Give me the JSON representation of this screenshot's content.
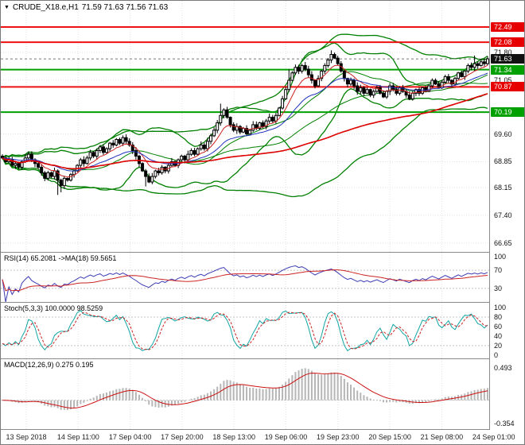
{
  "header": {
    "icon": "▼",
    "symbol_period": "CRUDE_X18.e,H1",
    "ohlc": "71.59 71.63 71.56 71.63"
  },
  "colors": {
    "background": "#ffffff",
    "grid": "#e2e2e2",
    "candle": "#000000",
    "bull_fill": "#ffffff",
    "bear_fill": "#000000",
    "bollinger": "#008000",
    "ma_fast": "#cc2222",
    "ma_slow": "#2233bb",
    "ma_long_red": "#dd0000",
    "level_red": "#ee1111",
    "level_green": "#00a000",
    "badge_red": "#e60000",
    "badge_green": "#00a000",
    "badge_black": "#111111",
    "rsi_line": "#3c3cb4",
    "rsi_ma": "#cc2222",
    "stoch_main": "#12a5a5",
    "stoch_signal": "#cc2222",
    "macd_hist": "#b6b6b6",
    "macd_signal": "#cc1111",
    "current_line": "#777777"
  },
  "chart_data": {
    "type": "candlestick",
    "symbol": "CRUDE_X18.e",
    "timeframe": "H1",
    "title": "CRUDE_X18.e,H1 71.59 71.63 71.56 71.63",
    "x_labels": [
      "13 Sep 2018",
      "14 Sep 11:00",
      "17 Sep 04:00",
      "17 Sep 20:00",
      "18 Sep 13:00",
      "19 Sep 06:00",
      "19 Sep 23:00",
      "20 Sep 15:00",
      "21 Sep 08:00",
      "24 Sep 01:00"
    ],
    "price_panel": {
      "ylim": [
        66.41,
        73.2
      ],
      "yticks": [
        71.8,
        71.05,
        69.6,
        68.85,
        68.15,
        67.4,
        66.65
      ],
      "levels": [
        {
          "price": 72.49,
          "color": "red"
        },
        {
          "price": 72.08,
          "color": "red"
        },
        {
          "price": 71.34,
          "color": "green"
        },
        {
          "price": 70.87,
          "color": "red"
        },
        {
          "price": 70.19,
          "color": "green"
        }
      ],
      "current_price": 71.63,
      "closes": [
        68.95,
        68.85,
        68.9,
        68.75,
        68.8,
        68.7,
        68.85,
        68.95,
        69.05,
        68.9,
        68.8,
        68.7,
        68.55,
        68.4,
        68.55,
        68.45,
        68.6,
        68.35,
        68.2,
        68.4,
        68.35,
        68.5,
        68.6,
        68.75,
        68.9,
        68.8,
        68.95,
        69.1,
        69.0,
        69.15,
        69.25,
        69.1,
        69.2,
        69.35,
        69.3,
        69.45,
        69.35,
        69.5,
        69.4,
        69.3,
        69.15,
        69.0,
        68.8,
        68.6,
        68.45,
        68.3,
        68.45,
        68.6,
        68.55,
        68.7,
        68.6,
        68.75,
        68.85,
        68.75,
        68.9,
        69.0,
        68.9,
        69.05,
        69.15,
        69.05,
        69.2,
        69.3,
        69.2,
        69.4,
        69.55,
        69.7,
        69.9,
        70.1,
        70.25,
        70.05,
        69.85,
        69.7,
        69.8,
        69.65,
        69.75,
        69.6,
        69.7,
        69.85,
        69.75,
        69.9,
        69.8,
        69.95,
        70.05,
        69.95,
        70.1,
        70.3,
        70.55,
        70.8,
        71.05,
        71.25,
        71.4,
        71.3,
        71.45,
        71.35,
        71.2,
        71.05,
        70.9,
        71.1,
        71.3,
        71.45,
        71.6,
        71.75,
        71.65,
        71.5,
        71.3,
        71.1,
        70.95,
        71.05,
        70.9,
        70.75,
        70.85,
        70.7,
        70.8,
        70.65,
        70.75,
        70.85,
        70.7,
        70.6,
        70.75,
        70.9,
        70.8,
        70.7,
        70.85,
        70.75,
        70.65,
        70.55,
        70.7,
        70.8,
        70.7,
        70.85,
        70.75,
        70.9,
        71.05,
        70.95,
        70.85,
        71.0,
        71.15,
        71.05,
        70.95,
        71.1,
        71.25,
        71.15,
        71.3,
        71.45,
        71.4,
        71.5,
        71.45,
        71.55,
        71.5,
        71.63
      ],
      "wick_spikes": [
        {
          "i": 17,
          "low": 67.95
        },
        {
          "i": 18,
          "low": 68.02
        },
        {
          "i": 44,
          "low": 68.18
        },
        {
          "i": 67,
          "high": 70.42
        },
        {
          "i": 88,
          "high": 71.35
        },
        {
          "i": 101,
          "high": 71.86
        },
        {
          "i": 145,
          "high": 71.72
        }
      ]
    },
    "indicators": {
      "bollinger": [
        {
          "period": 20,
          "dev": 2.0
        },
        {
          "period": 45,
          "dev": 2.4
        }
      ],
      "ma_overlays": [
        {
          "period": 8,
          "type": "ema",
          "color_key": "ma_fast",
          "width": 1
        },
        {
          "period": 21,
          "type": "ema",
          "color_key": "ma_slow",
          "width": 1
        },
        {
          "period": 90,
          "type": "sma",
          "color_key": "ma_long_red",
          "width": 1.6
        }
      ]
    },
    "rsi_panel": {
      "label": "RSI(14) 65.2081 ->MA(18) 59.5651",
      "period": 14,
      "ma_period": 18,
      "ylim": [
        0,
        109
      ],
      "yticks": [
        100,
        70,
        30
      ],
      "levels": [
        70,
        30
      ],
      "current": 65.2081,
      "ma_current": 59.5651
    },
    "stoch_panel": {
      "label": "Stoch(5,3,3) 100.0000 98.5259",
      "k_period": 5,
      "slowing": 3,
      "d_period": 3,
      "ylim": [
        -7,
        110
      ],
      "yticks": [
        100,
        80,
        60,
        40,
        20,
        0
      ],
      "levels": [
        80,
        20
      ],
      "current": 100.0,
      "signal_current": 98.5259
    },
    "macd_panel": {
      "label": "MACD(12,26,9) 0.275 0.195",
      "fast": 12,
      "slow": 26,
      "signal": 9,
      "ylim": [
        -0.44,
        0.626
      ],
      "yticks": [
        0.493,
        -0.354
      ],
      "current": 0.275,
      "signal_current": 0.195
    }
  }
}
